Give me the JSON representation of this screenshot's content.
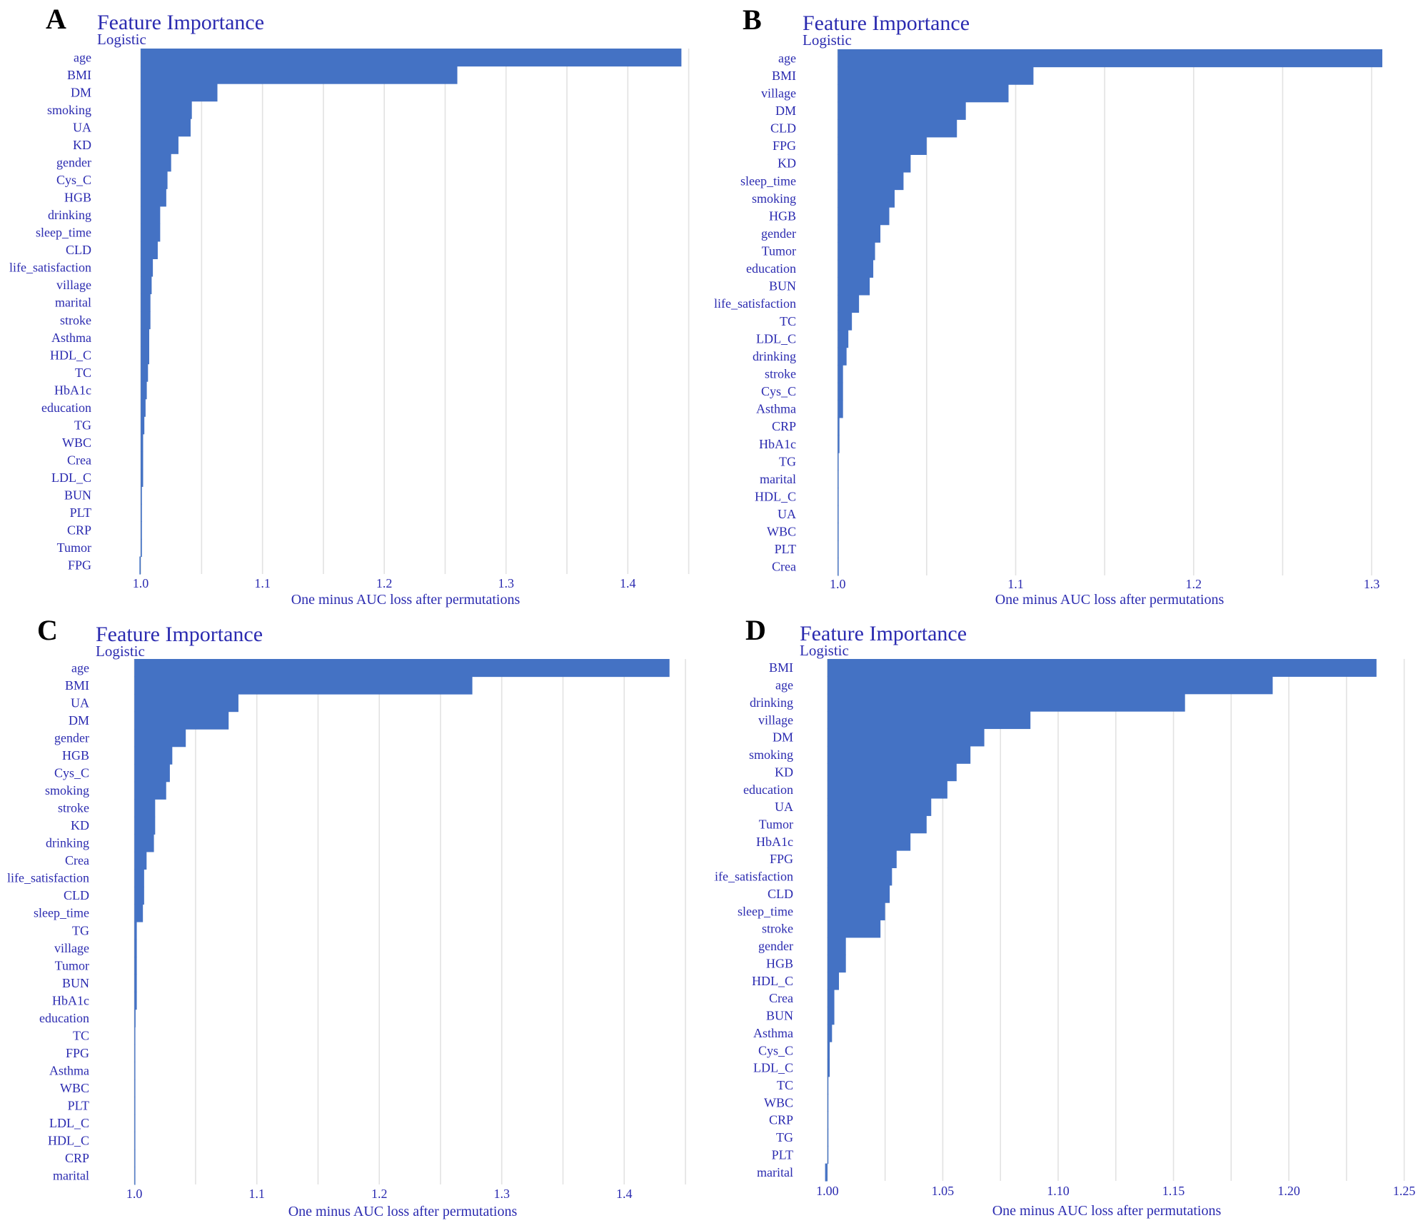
{
  "colors": {
    "bar": "#4472c4",
    "text": "#2b2bb0",
    "grid": "#e2e2e2",
    "letter": "#000000"
  },
  "chart_data": [
    {
      "panel": "A",
      "type": "bar",
      "orientation": "horizontal",
      "title": "Feature Importance",
      "subtitle": "Logistic",
      "xlabel": "One minus AUC loss after permutations",
      "ylabel": "",
      "baseline": 1.0,
      "xlim": [
        0.99,
        1.452
      ],
      "xticks": [
        1.0,
        1.1,
        1.2,
        1.3,
        1.4
      ],
      "xtick_labels": [
        "1.0",
        "1.1",
        "1.2",
        "1.3",
        "1.4"
      ],
      "gridlines": [
        1.0,
        1.05,
        1.1,
        1.15,
        1.2,
        1.25,
        1.3,
        1.35,
        1.4,
        1.45
      ],
      "categories": [
        "age",
        "BMI",
        "DM",
        "smoking",
        "UA",
        "KD",
        "gender",
        "Cys_C",
        "HGB",
        "drinking",
        "sleep_time",
        "CLD",
        "life_satisfaction",
        "village",
        "marital",
        "stroke",
        "Asthma",
        "HDL_C",
        "TC",
        "HbA1c",
        "education",
        "TG",
        "WBC",
        "Crea",
        "LDL_C",
        "BUN",
        "PLT",
        "CRP",
        "Tumor",
        "FPG"
      ],
      "values": [
        1.444,
        1.26,
        1.063,
        1.042,
        1.041,
        1.031,
        1.025,
        1.022,
        1.021,
        1.016,
        1.016,
        1.014,
        1.01,
        1.009,
        1.008,
        1.008,
        1.007,
        1.007,
        1.006,
        1.005,
        1.004,
        1.003,
        1.002,
        1.002,
        1.002,
        1.001,
        1.001,
        1.001,
        1.001,
        0.999
      ]
    },
    {
      "panel": "B",
      "type": "bar",
      "orientation": "horizontal",
      "title": "Feature Importance",
      "subtitle": "Logistic",
      "xlabel": "One minus AUC loss after permutations",
      "ylabel": "",
      "baseline": 1.0,
      "xlim": [
        0.9935,
        1.31
      ],
      "xticks": [
        1.0,
        1.1,
        1.2,
        1.3
      ],
      "xtick_labels": [
        "1.0",
        "1.1",
        "1.2",
        "1.3"
      ],
      "gridlines": [
        1.0,
        1.05,
        1.1,
        1.15,
        1.2,
        1.25,
        1.3
      ],
      "categories": [
        "age",
        "BMI",
        "village",
        "DM",
        "CLD",
        "FPG",
        "KD",
        "sleep_time",
        "smoking",
        "HGB",
        "gender",
        "Tumor",
        "education",
        "BUN",
        "life_satisfaction",
        "TC",
        "LDL_C",
        "drinking",
        "stroke",
        "Cys_C",
        "Asthma",
        "CRP",
        "HbA1c",
        "TG",
        "marital",
        "HDL_C",
        "UA",
        "WBC",
        "PLT",
        "Crea"
      ],
      "values": [
        1.306,
        1.11,
        1.096,
        1.072,
        1.067,
        1.05,
        1.041,
        1.037,
        1.032,
        1.029,
        1.024,
        1.021,
        1.02,
        1.018,
        1.012,
        1.008,
        1.006,
        1.005,
        1.003,
        1.003,
        1.003,
        1.001,
        1.001,
        1.0,
        1.0,
        1.0,
        1.0,
        1.0,
        1.0,
        1.0
      ]
    },
    {
      "panel": "C",
      "type": "bar",
      "orientation": "horizontal",
      "title": "Feature Importance",
      "subtitle": "Logistic",
      "xlabel": "One minus AUC loss after permutations",
      "ylabel": "",
      "baseline": 1.0,
      "xlim": [
        0.99,
        1.45
      ],
      "xticks": [
        1.0,
        1.1,
        1.2,
        1.3,
        1.4
      ],
      "xtick_labels": [
        "1.0",
        "1.1",
        "1.2",
        "1.3",
        "1.4"
      ],
      "gridlines": [
        1.0,
        1.05,
        1.1,
        1.15,
        1.2,
        1.25,
        1.3,
        1.35,
        1.4,
        1.45
      ],
      "categories": [
        "age",
        "BMI",
        "UA",
        "DM",
        "gender",
        "HGB",
        "Cys_C",
        "smoking",
        "stroke",
        "KD",
        "drinking",
        "Crea",
        "life_satisfaction",
        "CLD",
        "sleep_time",
        "TG",
        "village",
        "Tumor",
        "BUN",
        "HbA1c",
        "education",
        "TC",
        "FPG",
        "Asthma",
        "WBC",
        "PLT",
        "LDL_C",
        "HDL_C",
        "CRP",
        "marital"
      ],
      "values": [
        1.437,
        1.276,
        1.085,
        1.077,
        1.042,
        1.031,
        1.029,
        1.026,
        1.017,
        1.017,
        1.016,
        1.01,
        1.008,
        1.008,
        1.007,
        1.002,
        1.002,
        1.002,
        1.002,
        1.002,
        1.001,
        1.0,
        1.0,
        1.0,
        1.0,
        1.0,
        1.0,
        1.0,
        1.0,
        1.0
      ]
    },
    {
      "panel": "D",
      "type": "bar",
      "orientation": "horizontal",
      "title": "Feature Importance",
      "subtitle": "Logistic",
      "xlabel": "One minus AUC loss after permutations",
      "ylabel": "",
      "baseline": 1.0,
      "xlim": [
        0.9985,
        1.2532
      ],
      "xticks": [
        1.0,
        1.05,
        1.1,
        1.15,
        1.2,
        1.25
      ],
      "xtick_labels": [
        "1.00",
        "1.05",
        "1.10",
        "1.15",
        "1.20",
        "1.25"
      ],
      "gridlines": [
        1.0,
        1.025,
        1.05,
        1.075,
        1.1,
        1.125,
        1.15,
        1.175,
        1.2,
        1.225,
        1.25
      ],
      "categories": [
        "BMI",
        "age",
        "drinking",
        "village",
        "DM",
        "smoking",
        "KD",
        "education",
        "UA",
        "Tumor",
        "HbA1c",
        "FPG",
        "life_satisfaction",
        "CLD",
        "sleep_time",
        "stroke",
        "gender",
        "HGB",
        "HDL_C",
        "Crea",
        "BUN",
        "Asthma",
        "Cys_C",
        "LDL_C",
        "TC",
        "WBC",
        "CRP",
        "TG",
        "PLT",
        "marital"
      ],
      "values": [
        1.238,
        1.193,
        1.155,
        1.088,
        1.068,
        1.062,
        1.056,
        1.052,
        1.045,
        1.043,
        1.036,
        1.03,
        1.028,
        1.027,
        1.025,
        1.023,
        1.008,
        1.008,
        1.005,
        1.003,
        1.003,
        1.002,
        1.001,
        1.001,
        1.0,
        1.0,
        1.0,
        1.0,
        1.0,
        0.999
      ]
    }
  ]
}
